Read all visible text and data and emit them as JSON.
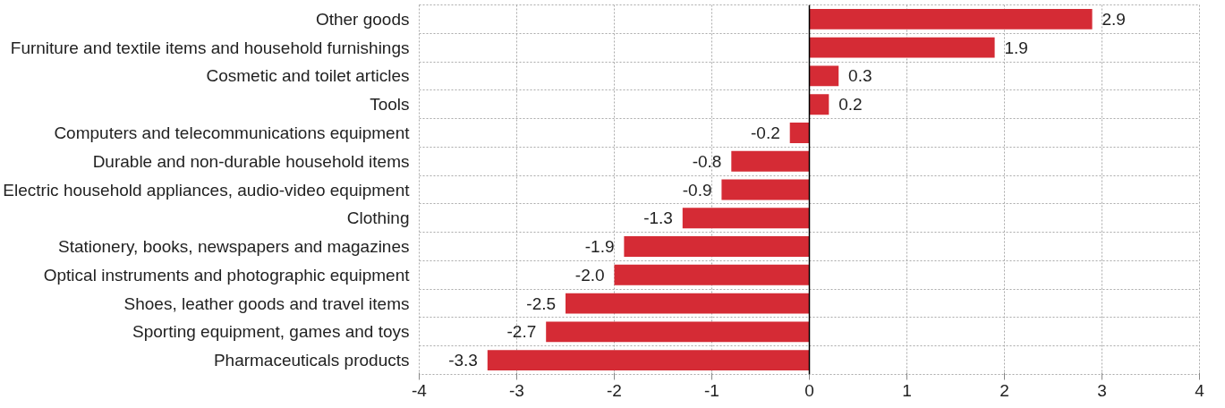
{
  "chart_data": {
    "type": "bar",
    "orientation": "horizontal",
    "categories": [
      "Other goods",
      "Furniture and textile items and household furnishings",
      "Cosmetic and toilet articles",
      "Tools",
      "Computers and telecommunications equipment",
      "Durable and non-durable household items",
      "Electric household appliances, audio-video equipment",
      "Clothing",
      "Stationery, books, newspapers and magazines",
      "Optical instruments and photographic equipment",
      "Shoes, leather goods and travel items",
      "Sporting equipment, games and toys",
      "Pharmaceuticals products"
    ],
    "values": [
      2.9,
      1.9,
      0.3,
      0.2,
      -0.2,
      -0.8,
      -0.9,
      -1.3,
      -1.9,
      -2.0,
      -2.5,
      -2.7,
      -3.3
    ],
    "color": "#d52b35",
    "xlim": [
      -4,
      4
    ],
    "xticks": [
      -4,
      -3,
      -2,
      -1,
      0,
      1,
      2,
      3,
      4
    ],
    "value_labels": [
      "2.9",
      "1.9",
      "0.3",
      "0.2",
      "-0.2",
      "-0.8",
      "-0.9",
      "-1.3",
      "-1.9",
      "-2.0",
      "-2.5",
      "-2.7",
      "-3.3"
    ],
    "grid": true
  }
}
